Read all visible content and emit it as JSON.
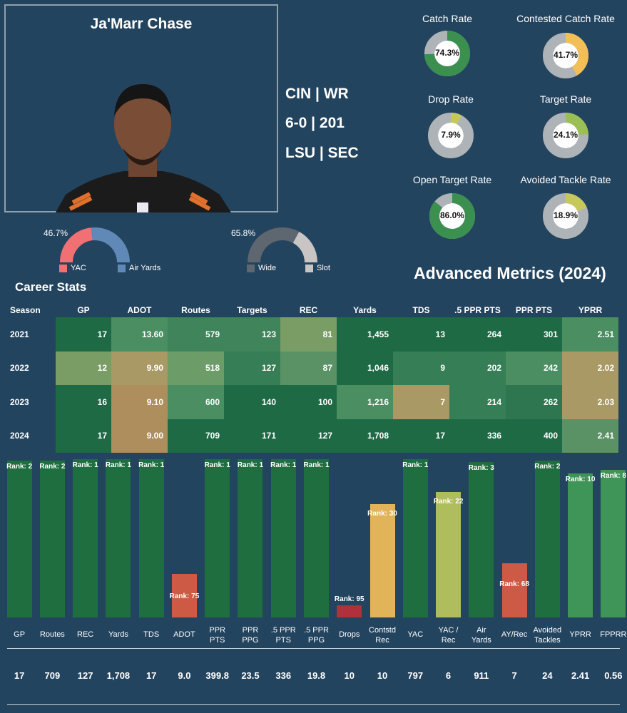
{
  "player": {
    "name": "Ja'Marr Chase",
    "team_pos": "CIN | WR",
    "height_weight": "6-0 | 201",
    "college_conf": "LSU | SEC"
  },
  "donuts": [
    {
      "title": "Catch Rate",
      "value": 74.3,
      "label": "74.3%",
      "color": "#3b8f4f"
    },
    {
      "title": "Contested Catch Rate",
      "value": 41.7,
      "label": "41.7%",
      "color": "#f2bf57"
    },
    {
      "title": "Drop Rate",
      "value": 7.9,
      "label": "7.9%",
      "color": "#c6c85c"
    },
    {
      "title": "Target Rate",
      "value": 24.1,
      "label": "24.1%",
      "color": "#9cbf55"
    },
    {
      "title": "Open Target Rate",
      "value": 86.0,
      "label": "86.0%",
      "color": "#3b8f4f"
    },
    {
      "title": "Avoided Tackle Rate",
      "value": 18.9,
      "label": "18.9%",
      "color": "#c6c85c"
    }
  ],
  "semi_charts": [
    {
      "pct_label": "46.7%",
      "value": 46.7,
      "left_label": "YAC",
      "right_label": "Air Yards",
      "left_color": "#f07073",
      "right_color": "#6089b8"
    },
    {
      "pct_label": "65.8%",
      "value": 65.8,
      "left_label": "Wide",
      "right_label": "Slot",
      "left_color": "#5e6670",
      "right_color": "#c9c5c4"
    }
  ],
  "advanced_title": "Advanced Metrics (2024)",
  "career_title": "Career Stats",
  "career": {
    "columns": [
      "Season",
      "GP",
      "ADOT",
      "Routes",
      "Targets",
      "REC",
      "Yards",
      "TDS",
      ".5 PPR PTS",
      "PPR PTS",
      "YPRR"
    ],
    "rows": [
      [
        "2021",
        "17",
        "13.60",
        "579",
        "123",
        "81",
        "1,455",
        "13",
        "264",
        "301",
        "2.51"
      ],
      [
        "2022",
        "12",
        "9.90",
        "518",
        "127",
        "87",
        "1,046",
        "9",
        "202",
        "242",
        "2.02"
      ],
      [
        "2023",
        "16",
        "9.10",
        "600",
        "140",
        "100",
        "1,216",
        "7",
        "214",
        "262",
        "2.03"
      ],
      [
        "2024",
        "17",
        "9.00",
        "709",
        "171",
        "127",
        "1,708",
        "17",
        "336",
        "400",
        "2.41"
      ]
    ],
    "cell_colors": [
      [
        null,
        "#1d6a45",
        "#4a8e62",
        "#3f845a",
        "#3f845a",
        "#7a9d66",
        "#1d6a45",
        "#1d6a45",
        "#1d6a45",
        "#1d6a45",
        "#4a8e62"
      ],
      [
        null,
        "#7a9d66",
        "#a99964",
        "#6c9c68",
        "#367e55",
        "#5a9265",
        "#1d6a45",
        "#367e55",
        "#367e55",
        "#4a8e62",
        "#a99964"
      ],
      [
        null,
        "#1d6a45",
        "#ad8e5c",
        "#4a8e62",
        "#1d6a45",
        "#1d6a45",
        "#4a8e62",
        "#a99964",
        "#367e55",
        "#2d7650",
        "#a99964"
      ],
      [
        null,
        "#1d6a45",
        "#ad8e5c",
        "#1d6a45",
        "#1d6a45",
        "#1d6a45",
        "#1d6a45",
        "#1d6a45",
        "#1d6a45",
        "#1d6a45",
        "#5a9265"
      ]
    ]
  },
  "chart_data": {
    "type": "bar",
    "categories": [
      "GP",
      "Routes",
      "REC",
      "Yards",
      "TDS",
      "ADOT",
      "PPR PTS",
      "PPR PPG",
      ".5 PPR PTS",
      ".5 PPR PPG",
      "Drops",
      "Contstd Rec",
      "YAC",
      "YAC / Rec",
      "Air Yards",
      "AY/Rec",
      "Avoided Tackles",
      "YPRR",
      "FPPRR"
    ],
    "category_lines": [
      [
        "GP"
      ],
      [
        "Routes"
      ],
      [
        "REC"
      ],
      [
        "Yards"
      ],
      [
        "TDS"
      ],
      [
        "ADOT"
      ],
      [
        "PPR",
        "PTS"
      ],
      [
        "PPR",
        "PPG"
      ],
      [
        ".5 PPR",
        "PTS"
      ],
      [
        ".5 PPR",
        "PPG"
      ],
      [
        "Drops"
      ],
      [
        "Contstd",
        "Rec"
      ],
      [
        "YAC"
      ],
      [
        "YAC /",
        "Rec"
      ],
      [
        "Air",
        "Yards"
      ],
      [
        "AY/Rec"
      ],
      [
        "Avoided",
        "Tackles"
      ],
      [
        "YPRR"
      ],
      [
        "FPPRR"
      ]
    ],
    "ranks": [
      2,
      2,
      1,
      1,
      1,
      75,
      1,
      1,
      1,
      1,
      95,
      30,
      1,
      22,
      3,
      68,
      2,
      10,
      8
    ],
    "rank_labels": [
      "Rank: 2",
      "Rank: 2",
      "Rank: 1",
      "Rank: 1",
      "Rank: 1",
      "Rank: 75",
      "Rank: 1",
      "Rank: 1",
      "Rank: 1",
      "Rank: 1",
      "Rank: 95",
      "Rank: 30",
      "Rank: 1",
      "Rank: 22",
      "Rank: 3",
      "Rank: 68",
      "Rank: 2",
      "Rank: 10",
      "Rank: 8"
    ],
    "bar_colors": [
      "#1e6e3f",
      "#1e6e3f",
      "#1e6e3f",
      "#1e6e3f",
      "#1e6e3f",
      "#cc5a44",
      "#1e6e3f",
      "#1e6e3f",
      "#1e6e3f",
      "#1e6e3f",
      "#b0303c",
      "#e2b45a",
      "#1e6e3f",
      "#b0bd5c",
      "#1e6e3f",
      "#cc5a44",
      "#1e6e3f",
      "#3f9557",
      "#3f9557"
    ],
    "values": [
      "17",
      "709",
      "127",
      "1,708",
      "17",
      "9.0",
      "399.8",
      "23.5",
      "336",
      "19.8",
      "10",
      "10",
      "797",
      "6",
      "911",
      "7",
      "24",
      "2.41",
      "0.56"
    ]
  }
}
